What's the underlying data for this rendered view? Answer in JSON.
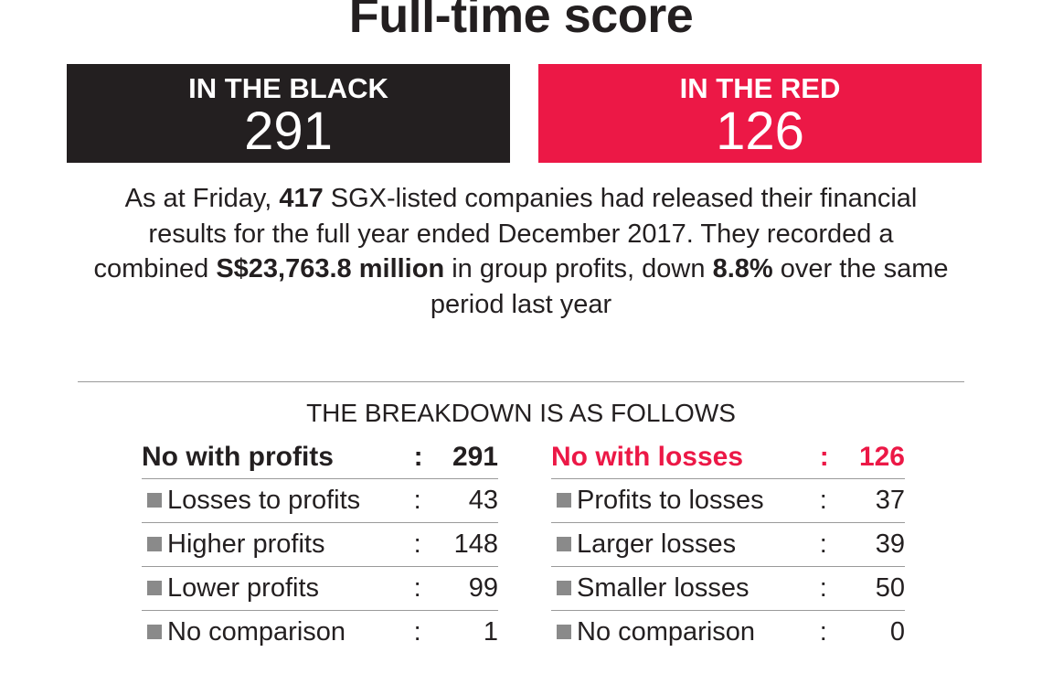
{
  "title": "Full-time score",
  "black_box": {
    "label": "IN THE BLACK",
    "value": "291",
    "color": "#231f20"
  },
  "red_box": {
    "label": "IN THE RED",
    "value": "126",
    "color": "#ec1846"
  },
  "summary": [
    {
      "text": "As at Friday, ",
      "bold": false
    },
    {
      "text": "417",
      "bold": true
    },
    {
      "text": " SGX-listed companies had released their financial results for the full year ended December 2017. They recorded a combined ",
      "bold": false
    },
    {
      "text": "S$23,763.8 million",
      "bold": true
    },
    {
      "text": " in group profits, down ",
      "bold": false
    },
    {
      "text": "8.8%",
      "bold": true
    },
    {
      "text": " over the same period last year",
      "bold": false
    }
  ],
  "breakdown_heading": "THE BREAKDOWN IS AS FOLLOWS",
  "chart_data": {
    "type": "table",
    "tables": [
      {
        "header": {
          "label": "No with profits",
          "value": "291"
        },
        "rows": [
          {
            "label": "Losses to profits",
            "value": "43"
          },
          {
            "label": "Higher profits",
            "value": "148"
          },
          {
            "label": "Lower profits",
            "value": "99"
          },
          {
            "label": "No comparison",
            "value": "1"
          }
        ]
      },
      {
        "header": {
          "label": "No with losses",
          "value": "126",
          "color": "#ec1846"
        },
        "rows": [
          {
            "label": "Profits to losses",
            "value": "37"
          },
          {
            "label": "Larger losses",
            "value": "39"
          },
          {
            "label": "Smaller losses",
            "value": "50"
          },
          {
            "label": "No comparison",
            "value": "0"
          }
        ]
      }
    ]
  },
  "colon": ":"
}
